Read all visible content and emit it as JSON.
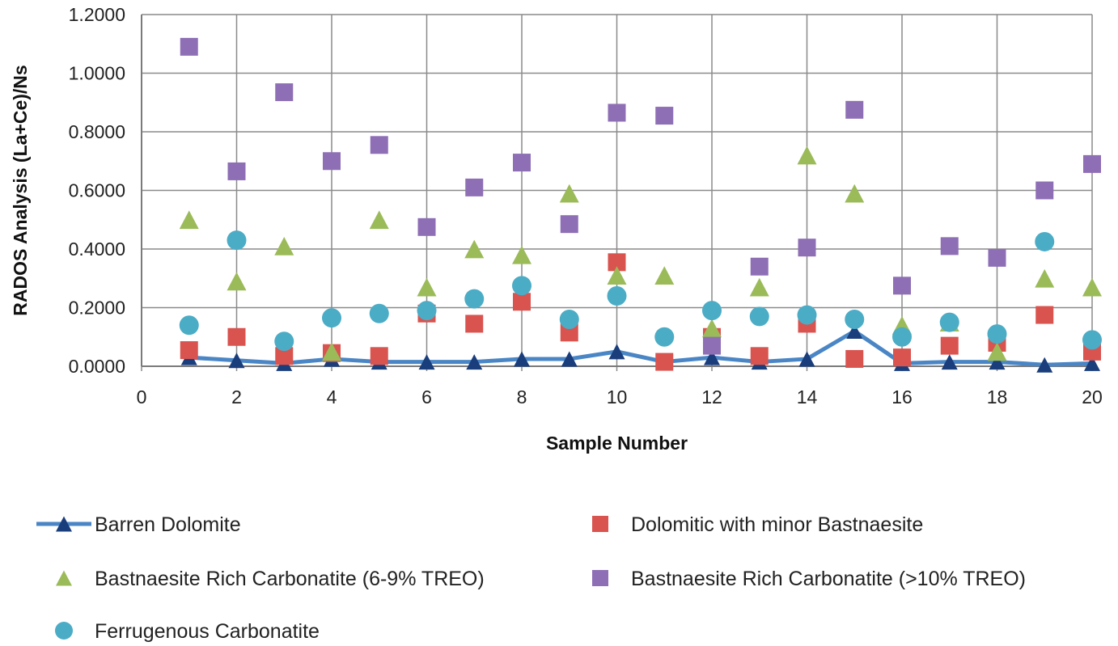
{
  "chart_data": {
    "type": "scatter",
    "xlabel": "Sample Number",
    "ylabel": "RADOS Analysis (La+Ce)/Ns",
    "xlim": [
      0,
      20
    ],
    "ylim": [
      0,
      1.2
    ],
    "xticks": [
      0,
      2,
      4,
      6,
      8,
      10,
      12,
      14,
      16,
      18,
      20
    ],
    "yticks": [
      0,
      0.2,
      0.4,
      0.6,
      0.8,
      1.0,
      1.2
    ],
    "x_tick_labels": [
      "0",
      "2",
      "4",
      "6",
      "8",
      "10",
      "12",
      "14",
      "16",
      "18",
      "20"
    ],
    "y_tick_labels": [
      "0.0000",
      "0.2000",
      "0.4000",
      "0.6000",
      "0.8000",
      "1.0000",
      "1.2000"
    ],
    "grid": "vertical and horizontal major gridlines",
    "legend_position": "bottom",
    "x": [
      1,
      2,
      3,
      4,
      5,
      6,
      7,
      8,
      9,
      10,
      11,
      12,
      13,
      14,
      15,
      16,
      17,
      18,
      19,
      20
    ],
    "series": [
      {
        "name": "Barren Dolomite",
        "marker": "triangle",
        "line": true,
        "color": "#4a86c5",
        "marker_color": "#1a3d7c",
        "values": [
          0.03,
          0.02,
          0.01,
          0.025,
          0.015,
          0.015,
          0.015,
          0.025,
          0.025,
          0.05,
          0.015,
          0.03,
          0.015,
          0.025,
          0.12,
          0.01,
          0.015,
          0.015,
          0.005,
          0.01
        ]
      },
      {
        "name": "Dolomitic with minor Bastnaesite",
        "marker": "square",
        "line": false,
        "color": "#d9534f",
        "values": [
          0.055,
          0.1,
          0.035,
          0.045,
          0.035,
          0.18,
          0.145,
          0.22,
          0.115,
          0.355,
          0.015,
          0.1,
          0.035,
          0.145,
          0.025,
          0.03,
          0.07,
          0.08,
          0.175,
          0.05
        ]
      },
      {
        "name": "Bastnaesite Rich Carbonatite (6-9% TREO)",
        "marker": "triangle",
        "line": false,
        "color": "#9bbb59",
        "values": [
          0.5,
          0.29,
          0.41,
          0.05,
          0.5,
          0.27,
          0.4,
          0.38,
          0.59,
          0.31,
          0.31,
          0.13,
          0.27,
          0.72,
          0.59,
          0.14,
          0.15,
          0.05,
          0.3,
          0.27
        ]
      },
      {
        "name": "Bastnaesite Rich Carbonatite (>10% TREO)",
        "marker": "square",
        "line": false,
        "color": "#8e6fb5",
        "values": [
          1.09,
          0.665,
          0.935,
          0.7,
          0.755,
          0.475,
          0.61,
          0.695,
          0.485,
          0.865,
          0.855,
          0.07,
          0.34,
          0.405,
          0.875,
          0.275,
          0.41,
          0.37,
          0.6,
          0.69
        ]
      },
      {
        "name": "Ferrugenous Carbonatite",
        "marker": "circle",
        "line": false,
        "color": "#4bacc6",
        "values": [
          0.14,
          0.43,
          0.085,
          0.165,
          0.18,
          0.19,
          0.23,
          0.275,
          0.16,
          0.24,
          0.1,
          0.19,
          0.17,
          0.175,
          0.16,
          0.1,
          0.15,
          0.11,
          0.425,
          0.09
        ]
      }
    ]
  }
}
